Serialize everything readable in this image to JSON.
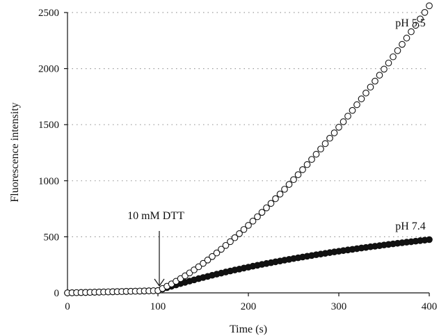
{
  "chart_data": {
    "type": "scatter",
    "xlabel": "Time (s)",
    "ylabel": "Fluorescence intensity",
    "xlim": [
      0,
      400
    ],
    "ylim": [
      0,
      2500
    ],
    "xticks": [
      "0",
      "100",
      "200",
      "300",
      "400"
    ],
    "yticks": [
      "0",
      "500",
      "1000",
      "1500",
      "2000",
      "2500"
    ],
    "grid": "horizontal dotted",
    "annotation": {
      "text": "10 mM DTT",
      "x": 100
    },
    "series": [
      {
        "name": "pH 5.5",
        "marker": "open-circle",
        "x": [
          0,
          5,
          10,
          15,
          20,
          25,
          30,
          35,
          40,
          45,
          50,
          55,
          60,
          65,
          70,
          75,
          80,
          85,
          90,
          95,
          100,
          105,
          110,
          115,
          120,
          125,
          130,
          135,
          140,
          145,
          150,
          155,
          160,
          165,
          170,
          175,
          180,
          185,
          190,
          195,
          200,
          205,
          210,
          215,
          220,
          225,
          230,
          235,
          240,
          245,
          250,
          255,
          260,
          265,
          270,
          275,
          280,
          285,
          290,
          295,
          300,
          305,
          310,
          315,
          320,
          325,
          330,
          335,
          340,
          345,
          350,
          355,
          360,
          365,
          370,
          375,
          380,
          385,
          390,
          395,
          400
        ],
        "y": [
          0,
          1,
          2,
          3,
          4,
          5,
          6,
          7,
          8,
          9,
          10,
          11,
          12,
          13,
          14,
          15,
          16,
          17,
          18,
          19,
          20,
          39,
          59,
          80,
          103,
          127,
          152,
          178,
          205,
          233,
          263,
          293,
          324,
          356,
          389,
          423,
          457,
          492,
          528,
          565,
          602,
          640,
          679,
          718,
          758,
          798,
          840,
          881,
          924,
          967,
          1010,
          1054,
          1099,
          1144,
          1190,
          1236,
          1283,
          1331,
          1379,
          1427,
          1477,
          1526,
          1576,
          1627,
          1678,
          1730,
          1782,
          1835,
          1888,
          1941,
          1995,
          2050,
          2105,
          2160,
          2216,
          2272,
          2329,
          2386,
          2443,
          2501,
          2560
        ]
      },
      {
        "name": "pH 7.4",
        "marker": "filled-circle",
        "x": [
          0,
          5,
          10,
          15,
          20,
          25,
          30,
          35,
          40,
          45,
          50,
          55,
          60,
          65,
          70,
          75,
          80,
          85,
          90,
          95,
          100,
          105,
          110,
          115,
          120,
          125,
          130,
          135,
          140,
          145,
          150,
          155,
          160,
          165,
          170,
          175,
          180,
          185,
          190,
          195,
          200,
          205,
          210,
          215,
          220,
          225,
          230,
          235,
          240,
          245,
          250,
          255,
          260,
          265,
          270,
          275,
          280,
          285,
          290,
          295,
          300,
          305,
          310,
          315,
          320,
          325,
          330,
          335,
          340,
          345,
          350,
          355,
          360,
          365,
          370,
          375,
          380,
          385,
          390,
          395,
          400
        ],
        "y": [
          0,
          1,
          2,
          3,
          4,
          5,
          6,
          7,
          8,
          9,
          10,
          11,
          12,
          13,
          14,
          15,
          16,
          17,
          18,
          19,
          20,
          34,
          47,
          59,
          71,
          83,
          94,
          105,
          116,
          127,
          137,
          147,
          157,
          167,
          176,
          186,
          195,
          204,
          212,
          221,
          229,
          238,
          246,
          254,
          262,
          269,
          277,
          284,
          292,
          299,
          306,
          313,
          320,
          327,
          333,
          340,
          346,
          352,
          359,
          365,
          371,
          377,
          383,
          388,
          394,
          400,
          405,
          411,
          416,
          421,
          427,
          432,
          437,
          442,
          447,
          452,
          456,
          461,
          466,
          470,
          475
        ]
      }
    ]
  },
  "labels": {
    "series_a": "pH 5.5",
    "series_b": "pH 7.4",
    "arrow_text": "10 mM DTT"
  },
  "colors": {
    "marker_stroke": "#111111",
    "filled_marker": "#111111",
    "open_marker": "#ffffff"
  }
}
